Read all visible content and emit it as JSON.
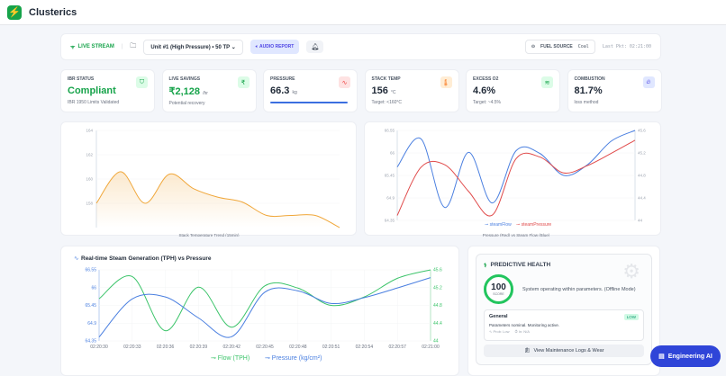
{
  "app": {
    "title": "Clusterics",
    "logo_icon": "bolt-icon"
  },
  "toolbar": {
    "live": "LIVE STREAM",
    "unit": "Unit #1 (High Pressure) • 50 TP",
    "audio": "AUDIO REPORT",
    "fuel_label": "FUEL SOURCE",
    "fuel_value": "Coal",
    "last_pkt": "Last Pkt: 02:21:00"
  },
  "kpis": [
    {
      "label": "IBR STATUS",
      "value": "Compliant",
      "unit": "",
      "sub": "IBR 1950 Limits Validated",
      "icon": "shield-icon",
      "color": "#16a34a"
    },
    {
      "label": "LIVE SAVINGS",
      "value": "₹2,128",
      "unit": "/hr",
      "sub": "Potential recovery",
      "icon": "rupee-icon",
      "color": "#16a34a"
    },
    {
      "label": "PRESSURE",
      "value": "66.3",
      "unit": "kg",
      "sub": "",
      "icon": "activity-icon",
      "color": "#1f2937",
      "progress": 0.95
    },
    {
      "label": "STACK TEMP",
      "value": "156",
      "unit": "°C",
      "sub": "Target: <160°C",
      "icon": "thermometer-icon",
      "color": "#1f2937"
    },
    {
      "label": "EXCESS O2",
      "value": "4.6%",
      "unit": "",
      "sub": "Target: ~4.5%",
      "icon": "wind-icon",
      "color": "#1f2937"
    },
    {
      "label": "COMBUSTION",
      "value": "81.7%",
      "unit": "",
      "sub": "loss method",
      "icon": "flame-icon",
      "color": "#1f2937"
    }
  ],
  "chart_data": [
    {
      "type": "area",
      "title": "Stack Temperature Trend (15min)",
      "ylim": [
        156,
        164
      ],
      "yticks": [
        158,
        160,
        162,
        164
      ],
      "values": [
        158,
        160.6,
        158,
        160.4,
        159.2,
        158.5,
        158.1,
        157,
        157,
        157,
        156
      ],
      "color": "#f0a73a"
    },
    {
      "type": "line",
      "title": "Pressure (Red) vs Steam Flow (Blue)",
      "ylim_left": [
        64.35,
        66.55
      ],
      "yticks_left": [
        "64.35",
        "64.9",
        "65.45",
        "66",
        "66.55"
      ],
      "ylim_right": [
        44,
        45.6
      ],
      "yticks_right": [
        "44",
        "44.4",
        "44.8",
        "45.2",
        "45.6"
      ],
      "series": [
        {
          "name": "steamFlow",
          "axis": "right",
          "color": "#4a7fe0",
          "values": [
            44.95,
            45.45,
            44.23,
            45.21,
            44.31,
            45.24,
            45.19,
            44.8,
            44.99,
            45.41,
            45.6
          ]
        },
        {
          "name": "steamPressure",
          "axis": "left",
          "color": "#e04a4a",
          "values": [
            64.47,
            65.65,
            65.71,
            65.06,
            64.48,
            65.86,
            65.9,
            65.51,
            65.69,
            65.99,
            66.31
          ]
        }
      ]
    },
    {
      "type": "line",
      "title": "Real-time Steam Generation (TPH) vs Pressure",
      "x": [
        "02:20:30",
        "02:20:33",
        "02:20:36",
        "02:20:39",
        "02:20:42",
        "02:20:45",
        "02:20:48",
        "02:20:51",
        "02:20:54",
        "02:20:57",
        "02:21:00"
      ],
      "ylim_left": [
        64.35,
        66.55
      ],
      "yticks_left": [
        "64.35",
        "64.9",
        "65.45",
        "66",
        "66.55"
      ],
      "ylim_right": [
        44,
        45.6
      ],
      "yticks_right": [
        "44",
        "44.4",
        "44.8",
        "45.2",
        "45.6"
      ],
      "series": [
        {
          "name": "Flow (TPH)",
          "axis": "right",
          "color": "#3cc46a",
          "values": [
            44.95,
            45.45,
            44.23,
            45.21,
            44.31,
            45.24,
            45.19,
            44.8,
            44.99,
            45.41,
            45.6
          ]
        },
        {
          "name": "Pressure (kg/cm²)",
          "axis": "left",
          "color": "#4a7fe0",
          "values": [
            64.47,
            65.65,
            65.71,
            65.06,
            64.48,
            65.86,
            65.9,
            65.51,
            65.69,
            65.99,
            66.31
          ]
        }
      ]
    }
  ],
  "health": {
    "title": "PREDICTIVE HEALTH",
    "score": "100",
    "score_label": "SCORE",
    "score_value": 100,
    "message": "System operating within parameters. (Offline Mode)",
    "item_title": "General",
    "badge": "LOW",
    "item_desc": "Parameters nominal. Monitoring active.",
    "prob": "Prob: Low",
    "in": "In: N/A",
    "logs_button": "View Maintenance Logs & Wear"
  },
  "assistant": {
    "label": "Engineering AI"
  }
}
